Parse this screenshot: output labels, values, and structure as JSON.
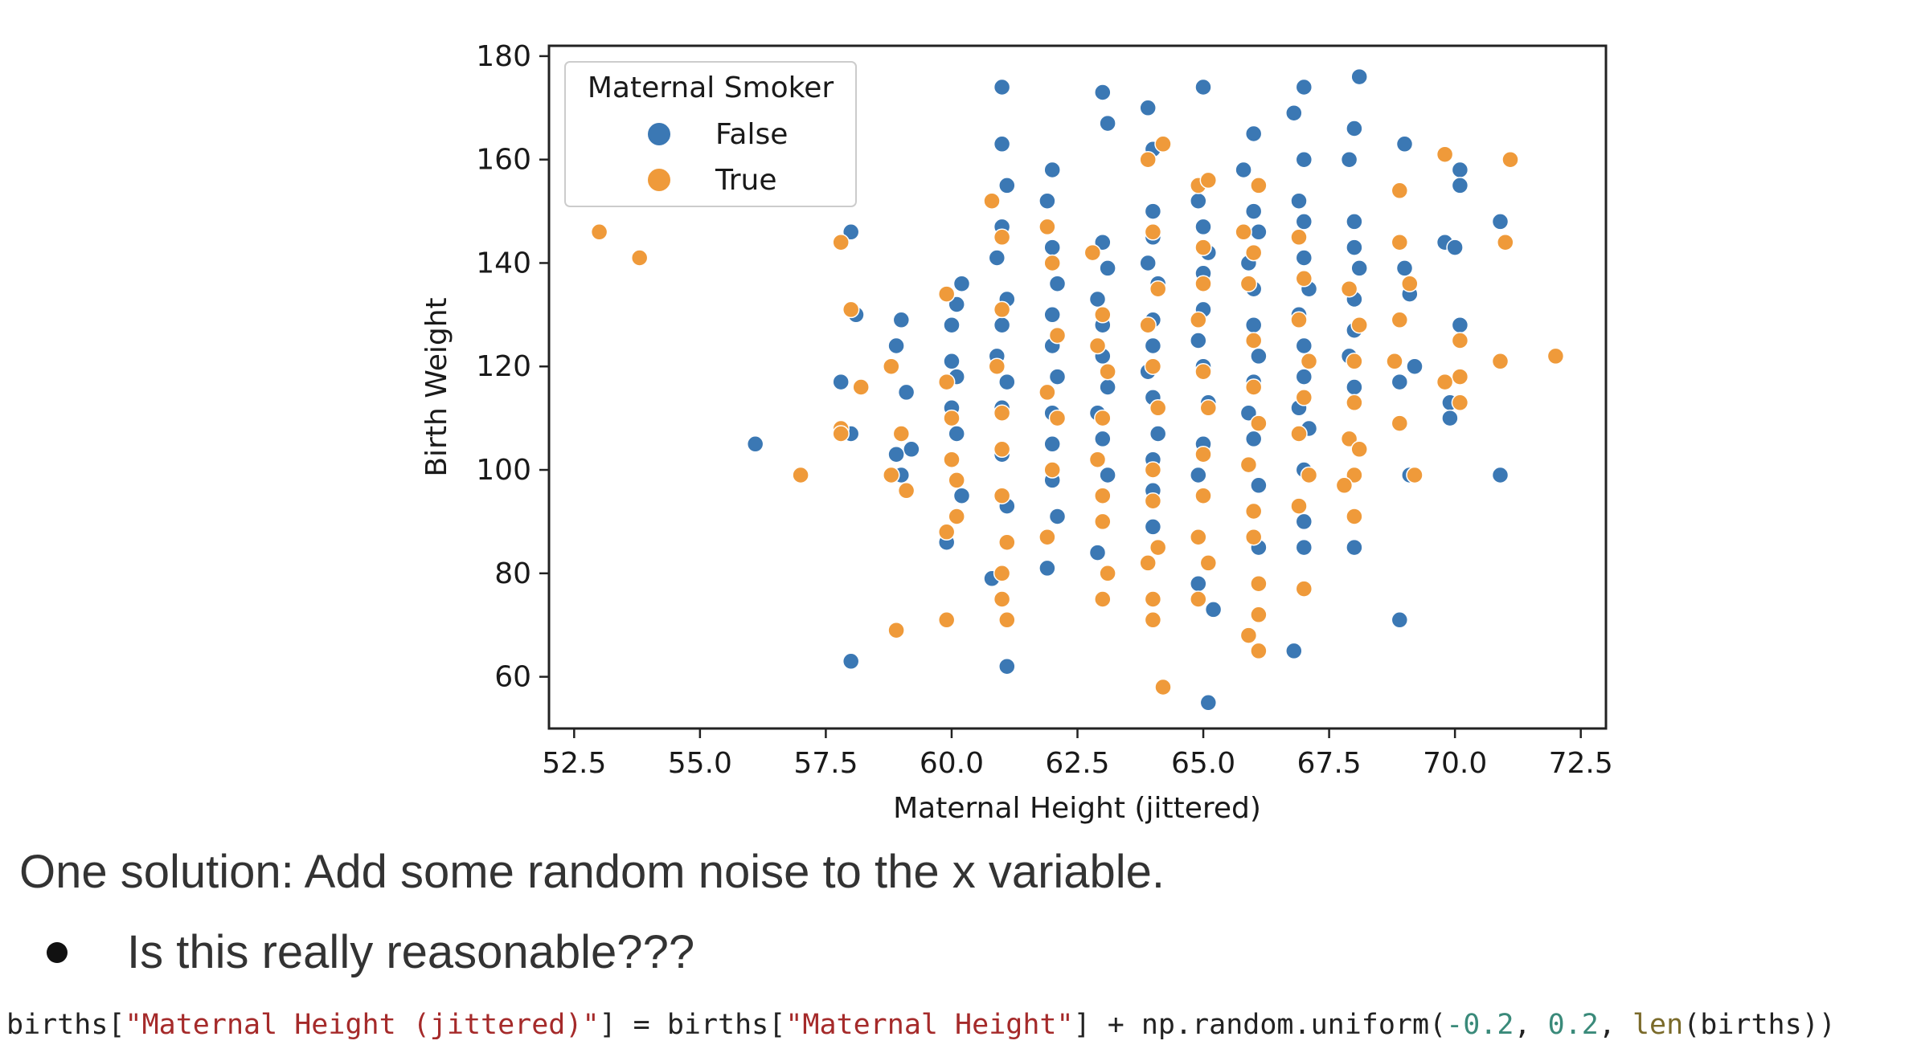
{
  "chart_data": {
    "type": "scatter",
    "xlabel": "Maternal Height (jittered)",
    "ylabel": "Birth Weight",
    "xlim": [
      52,
      73
    ],
    "ylim": [
      50,
      182
    ],
    "xticks": [
      52.5,
      55.0,
      57.5,
      60.0,
      62.5,
      65.0,
      67.5,
      70.0,
      72.5
    ],
    "xtick_labels": [
      "52.5",
      "55.0",
      "57.5",
      "60.0",
      "62.5",
      "65.0",
      "67.5",
      "70.0",
      "72.5"
    ],
    "yticks": [
      60,
      80,
      100,
      120,
      140,
      160,
      180
    ],
    "ytick_labels": [
      "60",
      "80",
      "100",
      "120",
      "140",
      "160",
      "180"
    ],
    "grid": false,
    "legend": {
      "title": "Maternal Smoker",
      "placement": "upper-left",
      "entries": [
        "False",
        "True"
      ]
    },
    "series": [
      {
        "name": "False",
        "color": "#3b78b4",
        "points": [
          [
            56.1,
            105
          ],
          [
            58.0,
            146
          ],
          [
            58.1,
            130
          ],
          [
            57.8,
            117
          ],
          [
            58.0,
            107
          ],
          [
            58.0,
            63
          ],
          [
            59.0,
            129
          ],
          [
            58.9,
            124
          ],
          [
            59.1,
            115
          ],
          [
            59.2,
            104
          ],
          [
            59.0,
            99
          ],
          [
            58.9,
            103
          ],
          [
            59.9,
            86
          ],
          [
            60.0,
            128
          ],
          [
            60.0,
            112
          ],
          [
            60.1,
            118
          ],
          [
            60.2,
            136
          ],
          [
            60.1,
            107
          ],
          [
            60.0,
            121
          ],
          [
            60.2,
            95
          ],
          [
            60.1,
            132
          ],
          [
            60.8,
            79
          ],
          [
            60.9,
            141
          ],
          [
            61.0,
            174
          ],
          [
            61.0,
            163
          ],
          [
            61.1,
            155
          ],
          [
            61.0,
            147
          ],
          [
            61.0,
            128
          ],
          [
            61.1,
            133
          ],
          [
            61.0,
            112
          ],
          [
            60.9,
            122
          ],
          [
            61.1,
            117
          ],
          [
            61.0,
            103
          ],
          [
            61.1,
            93
          ],
          [
            61.1,
            62
          ],
          [
            62.0,
            158
          ],
          [
            61.9,
            152
          ],
          [
            62.0,
            143
          ],
          [
            62.1,
            136
          ],
          [
            62.0,
            130
          ],
          [
            62.0,
            124
          ],
          [
            62.1,
            118
          ],
          [
            62.0,
            111
          ],
          [
            62.0,
            105
          ],
          [
            62.0,
            98
          ],
          [
            62.1,
            91
          ],
          [
            61.9,
            81
          ],
          [
            63.0,
            173
          ],
          [
            63.1,
            167
          ],
          [
            63.0,
            144
          ],
          [
            63.1,
            139
          ],
          [
            62.9,
            133
          ],
          [
            63.0,
            128
          ],
          [
            63.0,
            122
          ],
          [
            63.1,
            116
          ],
          [
            62.9,
            111
          ],
          [
            63.0,
            106
          ],
          [
            63.1,
            99
          ],
          [
            62.9,
            84
          ],
          [
            63.9,
            170
          ],
          [
            64.0,
            162
          ],
          [
            64.0,
            150
          ],
          [
            64.0,
            145
          ],
          [
            63.9,
            140
          ],
          [
            64.1,
            136
          ],
          [
            64.0,
            129
          ],
          [
            64.0,
            124
          ],
          [
            63.9,
            119
          ],
          [
            64.0,
            114
          ],
          [
            64.1,
            107
          ],
          [
            64.0,
            102
          ],
          [
            64.0,
            96
          ],
          [
            64.0,
            89
          ],
          [
            65.0,
            174
          ],
          [
            64.9,
            152
          ],
          [
            65.0,
            147
          ],
          [
            65.1,
            142
          ],
          [
            65.0,
            138
          ],
          [
            65.0,
            131
          ],
          [
            64.9,
            125
          ],
          [
            65.0,
            120
          ],
          [
            65.1,
            113
          ],
          [
            65.0,
            105
          ],
          [
            64.9,
            99
          ],
          [
            64.9,
            78
          ],
          [
            65.2,
            73
          ],
          [
            65.1,
            55
          ],
          [
            65.8,
            158
          ],
          [
            66.0,
            165
          ],
          [
            66.0,
            150
          ],
          [
            66.1,
            146
          ],
          [
            65.9,
            140
          ],
          [
            66.0,
            135
          ],
          [
            66.0,
            128
          ],
          [
            66.1,
            122
          ],
          [
            66.0,
            117
          ],
          [
            65.9,
            111
          ],
          [
            66.0,
            106
          ],
          [
            66.1,
            97
          ],
          [
            66.1,
            85
          ],
          [
            66.8,
            169
          ],
          [
            67.0,
            174
          ],
          [
            67.0,
            160
          ],
          [
            66.9,
            152
          ],
          [
            67.0,
            148
          ],
          [
            67.0,
            141
          ],
          [
            67.1,
            135
          ],
          [
            66.9,
            130
          ],
          [
            67.0,
            124
          ],
          [
            67.0,
            118
          ],
          [
            66.9,
            112
          ],
          [
            67.1,
            108
          ],
          [
            67.0,
            100
          ],
          [
            67.0,
            90
          ],
          [
            67.0,
            85
          ],
          [
            66.8,
            65
          ],
          [
            68.1,
            176
          ],
          [
            68.0,
            166
          ],
          [
            67.9,
            160
          ],
          [
            68.0,
            148
          ],
          [
            68.0,
            143
          ],
          [
            68.1,
            139
          ],
          [
            68.0,
            133
          ],
          [
            68.0,
            127
          ],
          [
            67.9,
            122
          ],
          [
            68.0,
            116
          ],
          [
            68.0,
            85
          ],
          [
            69.0,
            163
          ],
          [
            69.0,
            139
          ],
          [
            69.1,
            134
          ],
          [
            68.9,
            117
          ],
          [
            69.2,
            120
          ],
          [
            69.1,
            99
          ],
          [
            68.9,
            71
          ],
          [
            69.8,
            144
          ],
          [
            70.1,
            158
          ],
          [
            70.1,
            155
          ],
          [
            70.0,
            143
          ],
          [
            70.1,
            128
          ],
          [
            69.9,
            113
          ],
          [
            69.9,
            110
          ],
          [
            70.9,
            148
          ],
          [
            70.9,
            99
          ]
        ]
      },
      {
        "name": "True",
        "color": "#ef9a3a",
        "points": [
          [
            53.0,
            146
          ],
          [
            53.8,
            141
          ],
          [
            57.0,
            99
          ],
          [
            57.8,
            144
          ],
          [
            58.0,
            131
          ],
          [
            58.2,
            116
          ],
          [
            57.8,
            108
          ],
          [
            57.8,
            107
          ],
          [
            58.8,
            120
          ],
          [
            59.0,
            107
          ],
          [
            58.8,
            99
          ],
          [
            59.1,
            96
          ],
          [
            58.9,
            69
          ],
          [
            59.9,
            134
          ],
          [
            59.9,
            117
          ],
          [
            60.0,
            110
          ],
          [
            60.0,
            102
          ],
          [
            60.1,
            98
          ],
          [
            60.1,
            91
          ],
          [
            59.9,
            88
          ],
          [
            59.9,
            71
          ],
          [
            60.8,
            152
          ],
          [
            61.0,
            145
          ],
          [
            61.0,
            131
          ],
          [
            60.9,
            120
          ],
          [
            61.0,
            111
          ],
          [
            61.0,
            104
          ],
          [
            61.0,
            95
          ],
          [
            61.1,
            86
          ],
          [
            61.0,
            80
          ],
          [
            61.1,
            71
          ],
          [
            61.0,
            75
          ],
          [
            61.9,
            147
          ],
          [
            62.0,
            140
          ],
          [
            62.1,
            126
          ],
          [
            61.9,
            115
          ],
          [
            62.1,
            110
          ],
          [
            62.0,
            100
          ],
          [
            61.9,
            87
          ],
          [
            62.8,
            142
          ],
          [
            63.0,
            130
          ],
          [
            62.9,
            124
          ],
          [
            63.1,
            119
          ],
          [
            63.0,
            110
          ],
          [
            62.9,
            102
          ],
          [
            63.0,
            95
          ],
          [
            63.0,
            90
          ],
          [
            63.1,
            80
          ],
          [
            63.0,
            75
          ],
          [
            63.9,
            160
          ],
          [
            64.2,
            163
          ],
          [
            64.0,
            146
          ],
          [
            64.1,
            135
          ],
          [
            63.9,
            128
          ],
          [
            64.0,
            120
          ],
          [
            64.1,
            112
          ],
          [
            64.0,
            100
          ],
          [
            64.0,
            94
          ],
          [
            64.1,
            85
          ],
          [
            63.9,
            82
          ],
          [
            64.0,
            75
          ],
          [
            64.0,
            71
          ],
          [
            64.2,
            58
          ],
          [
            64.9,
            155
          ],
          [
            65.1,
            156
          ],
          [
            65.0,
            143
          ],
          [
            65.0,
            136
          ],
          [
            64.9,
            129
          ],
          [
            65.0,
            119
          ],
          [
            65.1,
            112
          ],
          [
            65.0,
            103
          ],
          [
            65.0,
            95
          ],
          [
            64.9,
            87
          ],
          [
            65.1,
            82
          ],
          [
            64.9,
            75
          ],
          [
            65.8,
            146
          ],
          [
            66.1,
            155
          ],
          [
            66.0,
            142
          ],
          [
            65.9,
            136
          ],
          [
            66.0,
            125
          ],
          [
            66.0,
            116
          ],
          [
            66.1,
            109
          ],
          [
            65.9,
            101
          ],
          [
            66.0,
            92
          ],
          [
            66.0,
            87
          ],
          [
            66.1,
            78
          ],
          [
            66.1,
            72
          ],
          [
            65.9,
            68
          ],
          [
            66.1,
            65
          ],
          [
            66.9,
            145
          ],
          [
            67.0,
            137
          ],
          [
            66.9,
            129
          ],
          [
            67.1,
            121
          ],
          [
            67.0,
            114
          ],
          [
            66.9,
            107
          ],
          [
            67.1,
            99
          ],
          [
            66.9,
            93
          ],
          [
            67.0,
            77
          ],
          [
            67.9,
            135
          ],
          [
            68.1,
            128
          ],
          [
            68.0,
            121
          ],
          [
            68.0,
            113
          ],
          [
            67.9,
            106
          ],
          [
            68.1,
            104
          ],
          [
            68.0,
            99
          ],
          [
            67.8,
            97
          ],
          [
            68.0,
            91
          ],
          [
            68.9,
            154
          ],
          [
            68.9,
            144
          ],
          [
            69.1,
            136
          ],
          [
            68.9,
            129
          ],
          [
            68.8,
            121
          ],
          [
            68.9,
            109
          ],
          [
            69.2,
            99
          ],
          [
            69.8,
            161
          ],
          [
            70.1,
            125
          ],
          [
            70.1,
            118
          ],
          [
            69.8,
            117
          ],
          [
            70.1,
            113
          ],
          [
            71.0,
            144
          ],
          [
            71.1,
            160
          ],
          [
            70.9,
            121
          ],
          [
            72.0,
            122
          ]
        ]
      }
    ]
  },
  "slide": {
    "caption": "One solution: Add some random noise to the x variable.",
    "bullet": "Is this really reasonable???"
  },
  "code": {
    "p1": "births[",
    "s1": "\"Maternal Height (jittered)\"",
    "p2": "] = births[",
    "s2": "\"Maternal Height\"",
    "p3": "] + np.random.uniform(",
    "n1": "-0.2",
    "p4": ", ",
    "n2": "0.2",
    "p5": ", ",
    "f1": "len",
    "p6": "(births))"
  }
}
